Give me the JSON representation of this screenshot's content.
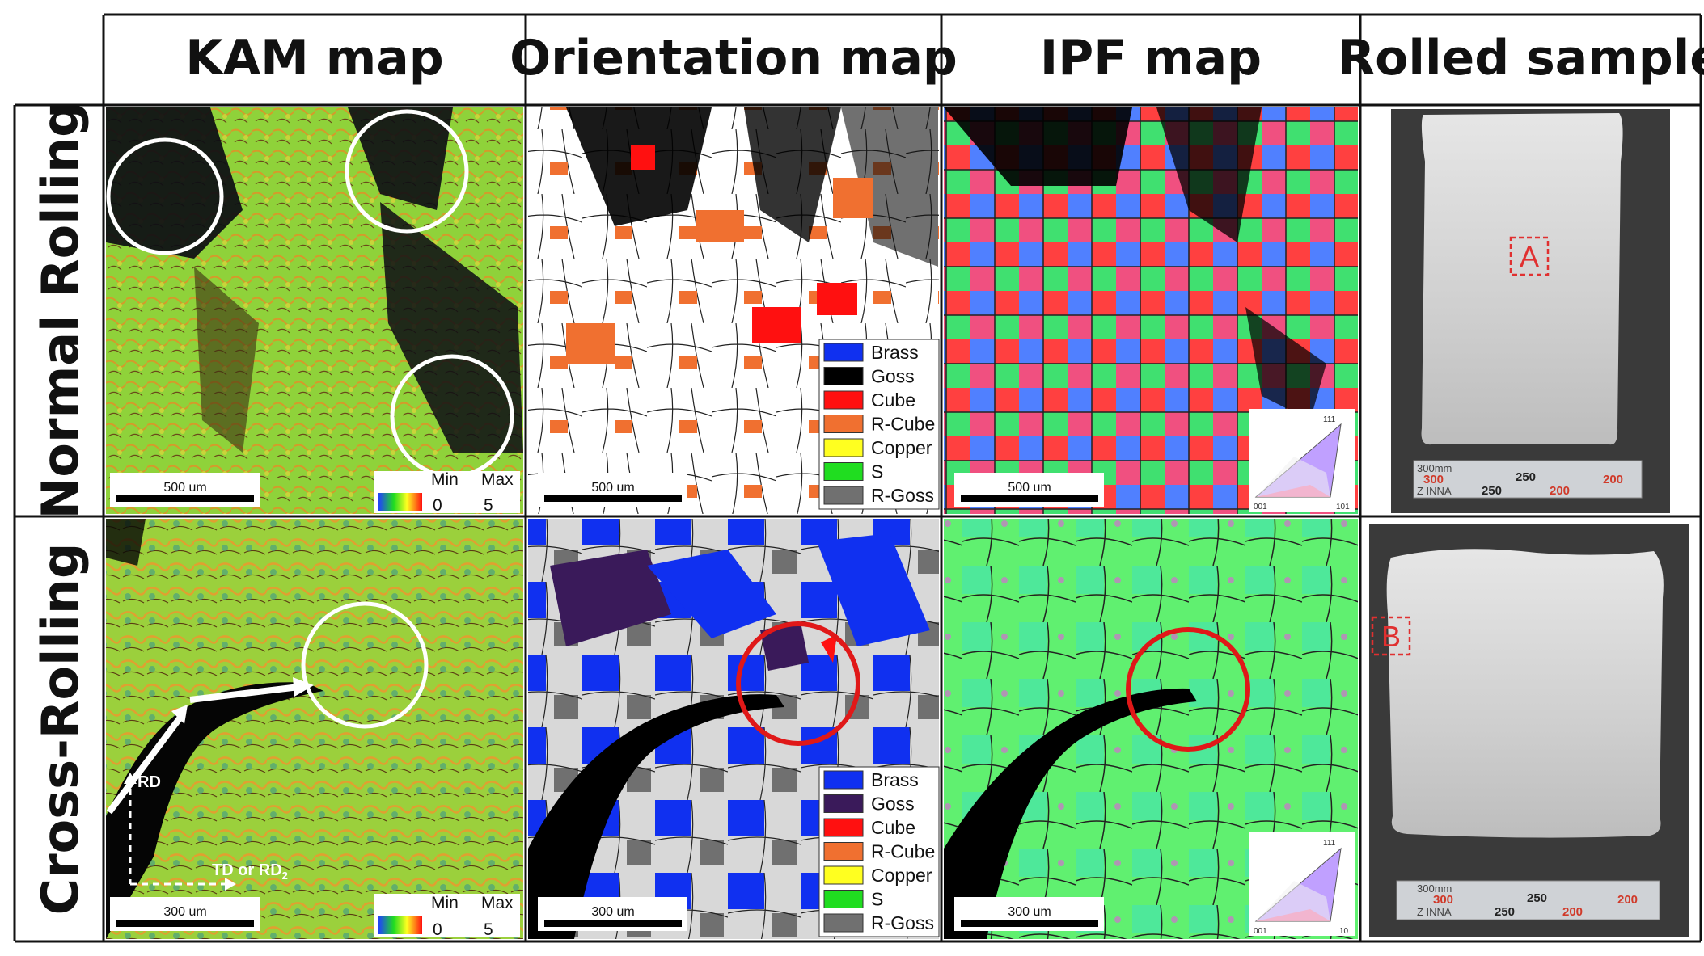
{
  "column_headers": [
    "KAM map",
    "Orientation map",
    "IPF map",
    "Rolled sample"
  ],
  "row_labels": [
    "Normal Rolling",
    "Cross-Rolling"
  ],
  "scale_bars": {
    "normal": "500 um",
    "cross": "300 um"
  },
  "kam_legend": {
    "min_label": "Min",
    "max_label": "Max",
    "min_value": "0",
    "max_value": "5"
  },
  "orientation_legend": [
    {
      "name": "Brass",
      "color": "#1030f0"
    },
    {
      "name": "Goss",
      "color": "#000000"
    },
    {
      "name": "Cube",
      "color": "#ff1010"
    },
    {
      "name": "R-Cube",
      "color": "#f07030"
    },
    {
      "name": "Copper",
      "color": "#ffff20"
    },
    {
      "name": "S",
      "color": "#20dd20"
    },
    {
      "name": "R-Goss",
      "color": "#707070"
    }
  ],
  "orientation_legend_cross": [
    {
      "name": "Brass",
      "color": "#1030f0"
    },
    {
      "name": "Goss",
      "color": "#3a1a5a"
    },
    {
      "name": "Cube",
      "color": "#ff1010"
    },
    {
      "name": "R-Cube",
      "color": "#f07030"
    },
    {
      "name": "Copper",
      "color": "#ffff20"
    },
    {
      "name": "S",
      "color": "#20dd20"
    },
    {
      "name": "R-Goss",
      "color": "#707070"
    }
  ],
  "ipf_key": {
    "top": "111",
    "left": "001",
    "right_normal": "101",
    "right_cross": "10"
  },
  "axis_labels": {
    "rd": "RD",
    "td": "TD or RD",
    "td_sub": "2"
  },
  "sample_labels": [
    "A",
    "B"
  ],
  "ruler": {
    "top_small": "300mm",
    "values_red": [
      "300",
      "200"
    ],
    "values_black": [
      "250"
    ],
    "values_lower_black": "250",
    "values_lower_red": "200",
    "brand": "Z INNA"
  }
}
